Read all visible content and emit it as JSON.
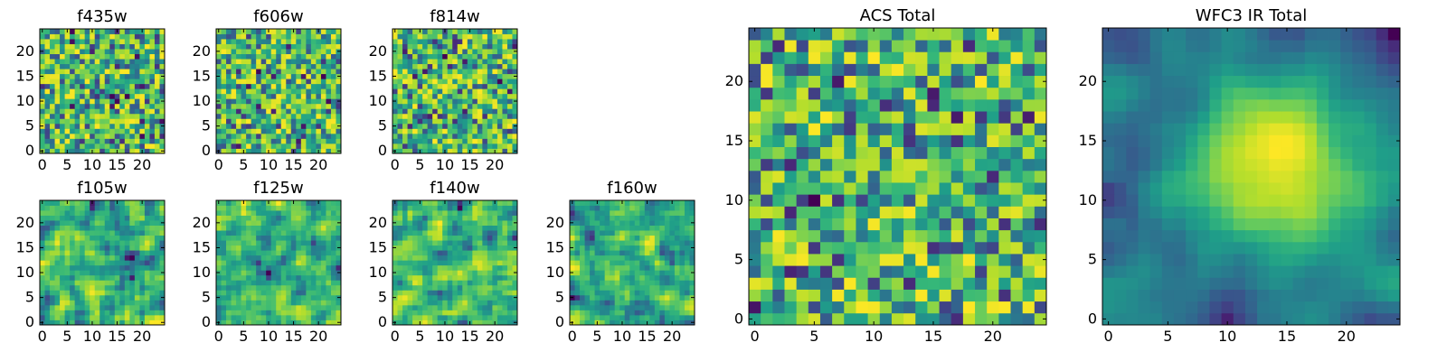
{
  "chart_data": [
    {
      "type": "heatmap",
      "title": "f435w",
      "xticks": [
        "0",
        "5",
        "10",
        "15",
        "20"
      ],
      "yticks": [
        "0",
        "5",
        "10",
        "15",
        "20"
      ],
      "xlim": [
        -0.5,
        24.5
      ],
      "ylim": [
        -0.5,
        24.5
      ],
      "grid_size": [
        25,
        25
      ],
      "colormap": "viridis",
      "pattern": "noise",
      "values": []
    },
    {
      "type": "heatmap",
      "title": "f606w",
      "xticks": [
        "0",
        "5",
        "10",
        "15",
        "20"
      ],
      "yticks": [
        "0",
        "5",
        "10",
        "15",
        "20"
      ],
      "xlim": [
        -0.5,
        24.5
      ],
      "ylim": [
        -0.5,
        24.5
      ],
      "grid_size": [
        25,
        25
      ],
      "colormap": "viridis",
      "pattern": "noise",
      "values": []
    },
    {
      "type": "heatmap",
      "title": "f814w",
      "xticks": [
        "0",
        "5",
        "10",
        "15",
        "20"
      ],
      "yticks": [
        "0",
        "5",
        "10",
        "15",
        "20"
      ],
      "xlim": [
        -0.5,
        24.5
      ],
      "ylim": [
        -0.5,
        24.5
      ],
      "grid_size": [
        25,
        25
      ],
      "colormap": "viridis",
      "pattern": "noise",
      "values": []
    },
    {
      "type": "heatmap",
      "title": "f105w",
      "xticks": [
        "0",
        "5",
        "10",
        "15",
        "20"
      ],
      "yticks": [
        "0",
        "5",
        "10",
        "15",
        "20"
      ],
      "xlim": [
        -0.5,
        24.5
      ],
      "ylim": [
        -0.5,
        24.5
      ],
      "grid_size": [
        25,
        25
      ],
      "colormap": "viridis",
      "pattern": "smooth",
      "values": []
    },
    {
      "type": "heatmap",
      "title": "f125w",
      "xticks": [
        "0",
        "5",
        "10",
        "15",
        "20"
      ],
      "yticks": [
        "0",
        "5",
        "10",
        "15",
        "20"
      ],
      "xlim": [
        -0.5,
        24.5
      ],
      "ylim": [
        -0.5,
        24.5
      ],
      "grid_size": [
        25,
        25
      ],
      "colormap": "viridis",
      "pattern": "smooth",
      "values": []
    },
    {
      "type": "heatmap",
      "title": "f140w",
      "xticks": [
        "0",
        "5",
        "10",
        "15",
        "20"
      ],
      "yticks": [
        "0",
        "5",
        "10",
        "15",
        "20"
      ],
      "xlim": [
        -0.5,
        24.5
      ],
      "ylim": [
        -0.5,
        24.5
      ],
      "grid_size": [
        25,
        25
      ],
      "colormap": "viridis",
      "pattern": "smooth",
      "values": []
    },
    {
      "type": "heatmap",
      "title": "f160w",
      "xticks": [
        "0",
        "5",
        "10",
        "15",
        "20"
      ],
      "yticks": [
        "0",
        "5",
        "10",
        "15",
        "20"
      ],
      "xlim": [
        -0.5,
        24.5
      ],
      "ylim": [
        -0.5,
        24.5
      ],
      "grid_size": [
        25,
        25
      ],
      "colormap": "viridis",
      "pattern": "smooth",
      "values": []
    },
    {
      "type": "heatmap",
      "title": "ACS Total",
      "xticks": [
        "0",
        "5",
        "10",
        "15",
        "20"
      ],
      "yticks": [
        "0",
        "5",
        "10",
        "15",
        "20"
      ],
      "xlim": [
        -0.5,
        24.5
      ],
      "ylim": [
        -0.5,
        24.5
      ],
      "grid_size": [
        25,
        25
      ],
      "colormap": "viridis",
      "pattern": "noise",
      "values": []
    },
    {
      "type": "heatmap",
      "title": "WFC3 IR Total",
      "xticks": [
        "0",
        "5",
        "10",
        "15",
        "20"
      ],
      "yticks": [
        "0",
        "5",
        "10",
        "15",
        "20"
      ],
      "xlim": [
        -0.5,
        24.5
      ],
      "ylim": [
        -0.5,
        24.5
      ],
      "grid_size": [
        25,
        25
      ],
      "colormap": "viridis",
      "pattern": "central-bright",
      "values": []
    }
  ]
}
